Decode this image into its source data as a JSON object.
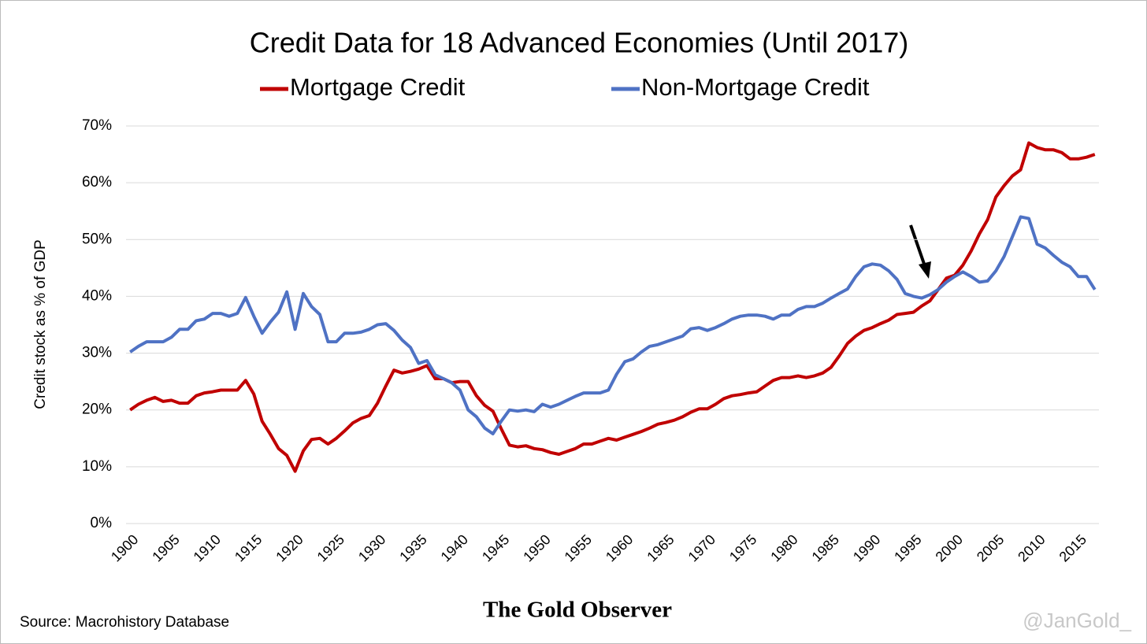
{
  "chart_data": {
    "type": "line",
    "title": "Credit Data for 18 Advanced Economies (Until 2017)",
    "y_label": "Credit stock as % of GDP",
    "source": "Source: Macrohistory Database",
    "brand": "The Gold Observer",
    "watermark": "@JanGold_",
    "x": [
      1900,
      1901,
      1902,
      1903,
      1904,
      1905,
      1906,
      1907,
      1908,
      1909,
      1910,
      1911,
      1912,
      1913,
      1914,
      1915,
      1916,
      1917,
      1918,
      1919,
      1920,
      1921,
      1922,
      1923,
      1924,
      1925,
      1926,
      1927,
      1928,
      1929,
      1930,
      1931,
      1932,
      1933,
      1934,
      1935,
      1936,
      1937,
      1938,
      1939,
      1940,
      1941,
      1942,
      1943,
      1944,
      1945,
      1946,
      1947,
      1948,
      1949,
      1950,
      1951,
      1952,
      1953,
      1954,
      1955,
      1956,
      1957,
      1958,
      1959,
      1960,
      1961,
      1962,
      1963,
      1964,
      1965,
      1966,
      1967,
      1968,
      1969,
      1970,
      1971,
      1972,
      1973,
      1974,
      1975,
      1976,
      1977,
      1978,
      1979,
      1980,
      1981,
      1982,
      1983,
      1984,
      1985,
      1986,
      1987,
      1988,
      1989,
      1990,
      1991,
      1992,
      1993,
      1994,
      1995,
      1996,
      1997,
      1998,
      1999,
      2000,
      2001,
      2002,
      2003,
      2004,
      2005,
      2006,
      2007,
      2008,
      2009,
      2010,
      2011,
      2012,
      2013,
      2014,
      2015,
      2016,
      2017
    ],
    "series": [
      {
        "name": "Mortgage Credit",
        "color": "#c00000",
        "values": [
          20,
          21,
          21.7,
          22.2,
          21.5,
          21.7,
          21.2,
          21.2,
          22.5,
          23,
          23.2,
          23.5,
          23.5,
          23.5,
          25.2,
          22.8,
          18,
          15.7,
          13.2,
          12,
          9.2,
          12.8,
          14.8,
          15,
          14,
          15,
          16.3,
          17.7,
          18.5,
          19,
          21.2,
          24.2,
          27,
          26.5,
          26.8,
          27.2,
          27.8,
          25.5,
          25.5,
          24.8,
          25,
          25,
          22.5,
          20.8,
          19.8,
          16.7,
          13.8,
          13.5,
          13.7,
          13.2,
          13,
          12.5,
          12.2,
          12.7,
          13.2,
          14,
          14,
          14.5,
          15,
          14.7,
          15.2,
          15.7,
          16.2,
          16.8,
          17.5,
          17.8,
          18.2,
          18.8,
          19.6,
          20.2,
          20.2,
          21,
          22,
          22.5,
          22.7,
          23,
          23.2,
          24.2,
          25.2,
          25.7,
          25.7,
          26,
          25.7,
          26,
          26.5,
          27.5,
          29.5,
          31.7,
          33,
          34,
          34.5,
          35.2,
          35.8,
          36.8,
          37,
          37.2,
          38.3,
          39.2,
          41.2,
          43.2,
          43.7,
          45.5,
          48,
          51,
          53.5,
          57.5,
          59.5,
          61.2,
          62.3,
          67,
          66.2,
          65.8,
          65.8,
          65.3,
          64.2,
          64.2,
          64.5,
          65
        ]
      },
      {
        "name": "Non-Mortgage Credit",
        "color": "#4f72c4",
        "values": [
          30.2,
          31.2,
          32,
          32,
          32,
          32.8,
          34.2,
          34.2,
          35.7,
          36,
          37,
          37,
          36.5,
          37,
          39.8,
          36.5,
          33.5,
          35.5,
          37.2,
          40.8,
          34.2,
          40.5,
          38.2,
          36.8,
          32,
          32,
          33.5,
          33.5,
          33.7,
          34.2,
          35,
          35.2,
          34,
          32.3,
          31,
          28.2,
          28.7,
          26.2,
          25.5,
          24.8,
          23.5,
          20,
          18.8,
          16.8,
          15.8,
          18,
          20,
          19.8,
          20,
          19.7,
          21,
          20.5,
          21,
          21.7,
          22.4,
          23,
          23,
          23,
          23.5,
          26.3,
          28.5,
          29,
          30.2,
          31.2,
          31.5,
          32,
          32.5,
          33,
          34.3,
          34.5,
          34,
          34.5,
          35.2,
          36,
          36.5,
          36.7,
          36.7,
          36.5,
          36,
          36.7,
          36.7,
          37.7,
          38.2,
          38.2,
          38.8,
          39.7,
          40.5,
          41.3,
          43.5,
          45.2,
          45.7,
          45.5,
          44.5,
          43,
          40.5,
          40,
          39.7,
          40.3,
          41.2,
          42.5,
          43.5,
          44.3,
          43.5,
          42.5,
          42.7,
          44.5,
          47,
          50.5,
          54,
          53.7,
          49.2,
          48.5,
          47.2,
          46,
          45.2,
          43.5,
          43.5,
          41.2
        ]
      }
    ],
    "xlim": [
      1899.5,
      2017.5
    ],
    "xticks": [
      1900,
      1905,
      1910,
      1915,
      1920,
      1925,
      1930,
      1935,
      1940,
      1945,
      1950,
      1955,
      1960,
      1965,
      1970,
      1975,
      1980,
      1985,
      1990,
      1995,
      2000,
      2005,
      2010,
      2015
    ],
    "ylim": [
      0,
      70
    ],
    "yticks": [
      {
        "value": 0,
        "label": "0%"
      },
      {
        "value": 10,
        "label": "10%"
      },
      {
        "value": 20,
        "label": "20%"
      },
      {
        "value": 30,
        "label": "30%"
      },
      {
        "value": 40,
        "label": "40%"
      },
      {
        "value": 50,
        "label": "50%"
      },
      {
        "value": 60,
        "label": "60%"
      },
      {
        "value": 70,
        "label": "70%"
      }
    ],
    "grid": true
  }
}
